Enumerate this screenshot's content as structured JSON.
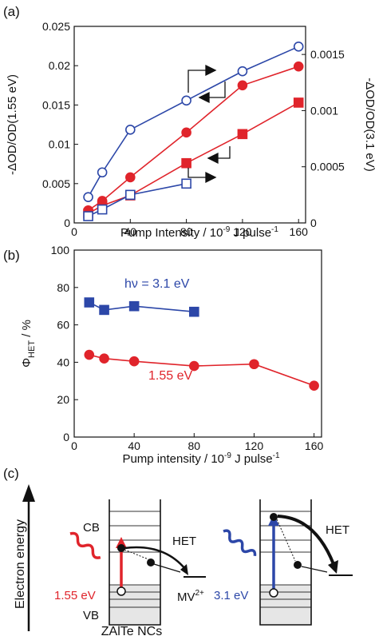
{
  "chart_data": [
    {
      "panel_label": "(a)",
      "type": "line",
      "xlabel": "Pump Intensity / 10",
      "xlabel_sup": "-9",
      "xlabel_tail": " J pulse",
      "xlabel_sup2": "-1",
      "ylabel_left": "-ΔOD/OD(1.55 eV)",
      "ylabel_right": "-ΔOD/OD(3.1 eV)",
      "xlim": [
        0,
        165
      ],
      "ylim_left": [
        0,
        0.025
      ],
      "ylim_right": [
        0,
        0.00175
      ],
      "xticks": [
        "0",
        "40",
        "80",
        "120",
        "160"
      ],
      "yticks_left": [
        "0",
        "0.005",
        "0.01",
        "0.015",
        "0.02",
        "0.025"
      ],
      "yticks_right": [
        "0",
        "0.0005",
        "0.001",
        "0.0015"
      ],
      "series": [
        {
          "axis": "right",
          "marker": "open-circle",
          "color": "#2c47a8",
          "x": [
            10,
            20,
            40,
            80,
            120,
            160
          ],
          "values": [
            0.00023,
            0.00045,
            0.00083,
            0.00109,
            0.00135,
            0.00157
          ]
        },
        {
          "axis": "left",
          "marker": "filled-circle",
          "color": "#e0242b",
          "x": [
            10,
            20,
            40,
            80,
            120,
            160
          ],
          "values": [
            0.0016,
            0.0028,
            0.0058,
            0.0115,
            0.0175,
            0.0199
          ]
        },
        {
          "axis": "left",
          "marker": "filled-square",
          "color": "#e0242b",
          "x": [
            10,
            20,
            40,
            80,
            120,
            160
          ],
          "values": [
            0.0012,
            0.0022,
            0.0035,
            0.0076,
            0.0113,
            0.0153
          ]
        },
        {
          "axis": "right",
          "marker": "open-square",
          "color": "#2c47a8",
          "x": [
            10,
            20,
            40,
            80
          ],
          "values": [
            6e-05,
            0.00012,
            0.00025,
            0.00035
          ]
        }
      ]
    },
    {
      "panel_label": "(b)",
      "type": "line",
      "xlabel": "Pump intensity / 10",
      "xlabel_sup": "-9",
      "xlabel_tail": " J pulse",
      "xlabel_sup2": "-1",
      "ylabel": "Φ",
      "ylabel_sub": "HET",
      "ylabel_tail": " / %",
      "xlim": [
        0,
        165
      ],
      "ylim": [
        0,
        100
      ],
      "xticks": [
        "0",
        "40",
        "80",
        "120",
        "160"
      ],
      "yticks": [
        "0",
        "20",
        "40",
        "60",
        "80",
        "100"
      ],
      "annotations": {
        "blue": "hν = 3.1 eV",
        "red": "1.55 eV"
      },
      "series": [
        {
          "marker": "filled-square",
          "color": "#2c47a8",
          "x": [
            10,
            20,
            40,
            80
          ],
          "values": [
            72,
            68,
            70,
            67
          ]
        },
        {
          "marker": "filled-circle",
          "color": "#e0242b",
          "x": [
            10,
            20,
            40,
            80,
            120,
            160
          ],
          "values": [
            44,
            42,
            40.5,
            38,
            39,
            27.5
          ]
        }
      ]
    }
  ],
  "diagram": {
    "panel_label": "(c)",
    "y_axis": "Electron energy",
    "cb": "CB",
    "vb": "VB",
    "het_left": "HET",
    "het_right": "HET",
    "mv": "MV",
    "mv_sup": "2+",
    "red_photon": "1.55 eV",
    "blue_photon": "3.1 eV",
    "material": "ZAlTe NCs",
    "colors": {
      "red": "#e0242b",
      "blue": "#2c47a8"
    }
  }
}
